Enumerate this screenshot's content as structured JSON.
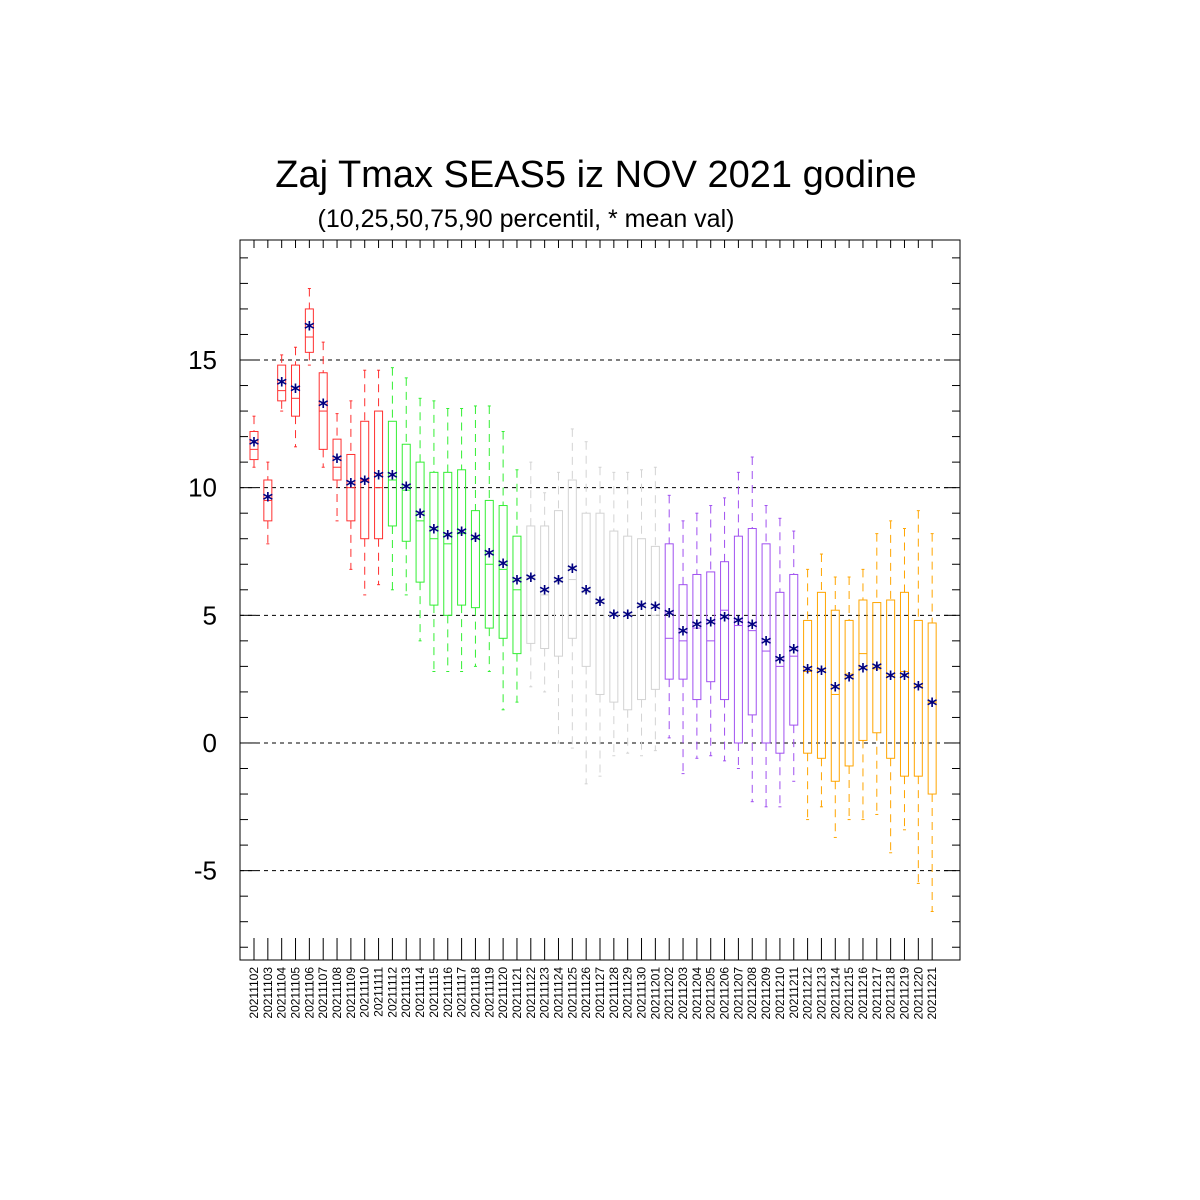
{
  "chart_data": {
    "type": "boxplot",
    "title": "Zaj Tmax SEAS5 iz NOV 2021 godine",
    "subtitle": "(10,25,50,75,90 percentil, * mean val)",
    "xlabel": "",
    "ylabel": "",
    "ylim": [
      -8.5,
      19.7
    ],
    "yticks": [
      -5,
      0,
      5,
      10,
      15
    ],
    "grid": "dashed horizontal at major ticks",
    "mean_marker": "*",
    "mean_color": "#000080",
    "categories": [
      "20211102",
      "20211103",
      "20211104",
      "20211105",
      "20211106",
      "20211107",
      "20211108",
      "20211109",
      "20211110",
      "20211111",
      "20211112",
      "20211113",
      "20211114",
      "20211115",
      "20211116",
      "20211117",
      "20211118",
      "20211119",
      "20211120",
      "20211121",
      "20211122",
      "20211123",
      "20211124",
      "20211125",
      "20211126",
      "20211127",
      "20211128",
      "20211129",
      "20211130",
      "20211201",
      "20211202",
      "20211203",
      "20211204",
      "20211205",
      "20211206",
      "20211207",
      "20211208",
      "20211209",
      "20211210",
      "20211211",
      "20211212",
      "20211213",
      "20211214",
      "20211215",
      "20211216",
      "20211217",
      "20211218",
      "20211219",
      "20211220",
      "20211221"
    ],
    "groups": [
      {
        "color": "#ff3030",
        "count": 10
      },
      {
        "color": "#33ee33",
        "count": 10
      },
      {
        "color": "#d3d3d3",
        "count": 10
      },
      {
        "color": "#a050f0",
        "count": 10
      },
      {
        "color": "#ffa500",
        "count": 10
      }
    ],
    "p10": [
      10.8,
      7.8,
      13.0,
      11.6,
      14.8,
      10.8,
      8.7,
      6.8,
      5.8,
      6.2,
      6.0,
      5.8,
      4.0,
      2.8,
      2.8,
      2.8,
      3.0,
      2.8,
      1.3,
      1.6,
      2.2,
      2.0,
      0.0,
      -0.2,
      -1.6,
      -1.3,
      -0.5,
      -0.4,
      -0.5,
      -0.3,
      0.2,
      -1.2,
      -0.6,
      -0.5,
      -0.7,
      -1.0,
      -2.3,
      -2.5,
      -2.5,
      -1.5,
      -3.0,
      -2.5,
      -3.7,
      -3.0,
      -3.0,
      -2.8,
      -4.3,
      -3.4,
      -5.5,
      -6.6
    ],
    "p25": [
      11.1,
      8.7,
      13.4,
      12.8,
      15.3,
      11.5,
      10.3,
      8.7,
      8.0,
      8.0,
      8.5,
      7.9,
      6.3,
      5.4,
      5.0,
      5.4,
      5.3,
      4.5,
      4.1,
      3.5,
      3.9,
      3.7,
      3.4,
      4.1,
      3.0,
      1.9,
      1.6,
      1.3,
      1.7,
      2.1,
      2.5,
      2.5,
      1.7,
      2.4,
      1.7,
      0.0,
      1.1,
      0.0,
      -0.4,
      0.7,
      -0.4,
      -0.6,
      -1.5,
      -0.9,
      0.1,
      0.4,
      -0.6,
      -1.3,
      -1.3,
      -2.0
    ],
    "p50": [
      11.5,
      9.5,
      13.8,
      13.5,
      15.9,
      13.0,
      10.8,
      10.0,
      10.3,
      10.0,
      10.3,
      9.9,
      8.7,
      8.0,
      7.8,
      8.2,
      8.0,
      7.0,
      6.8,
      6.0,
      6.5,
      5.8,
      6.3,
      6.4,
      5.9,
      5.5,
      5.0,
      5.0,
      5.4,
      5.0,
      4.1,
      4.0,
      4.5,
      4.0,
      5.2,
      4.6,
      4.4,
      3.6,
      3.0,
      3.4,
      2.8,
      2.9,
      1.9,
      2.7,
      3.5,
      2.9,
      2.6,
      2.8,
      2.2,
      1.6
    ],
    "p75": [
      12.2,
      10.3,
      14.8,
      14.8,
      17.0,
      14.5,
      11.9,
      11.3,
      12.6,
      13.0,
      12.6,
      11.7,
      11.0,
      10.6,
      10.6,
      10.7,
      9.1,
      9.5,
      9.3,
      8.1,
      8.5,
      8.5,
      9.1,
      10.3,
      9.0,
      9.0,
      8.3,
      8.1,
      8.0,
      7.7,
      7.8,
      6.2,
      6.6,
      6.7,
      7.1,
      8.1,
      8.4,
      7.8,
      5.9,
      6.6,
      4.8,
      5.9,
      5.2,
      4.8,
      5.6,
      5.5,
      5.6,
      5.9,
      4.8,
      4.7
    ],
    "p90": [
      12.8,
      11.0,
      15.2,
      15.5,
      17.8,
      15.7,
      12.9,
      13.4,
      14.6,
      14.6,
      14.7,
      14.3,
      13.5,
      13.4,
      13.1,
      13.1,
      13.2,
      13.2,
      12.2,
      10.7,
      11.0,
      9.8,
      10.6,
      12.3,
      11.8,
      10.8,
      10.6,
      10.6,
      10.7,
      10.8,
      9.7,
      8.7,
      9.0,
      9.3,
      9.6,
      10.6,
      11.2,
      9.3,
      8.8,
      8.3,
      6.8,
      7.4,
      6.5,
      6.5,
      6.8,
      8.2,
      8.7,
      8.4,
      9.1,
      8.2
    ],
    "mean": [
      11.75,
      9.6,
      14.1,
      13.85,
      16.3,
      13.25,
      11.1,
      10.15,
      10.25,
      10.45,
      10.45,
      10.0,
      8.95,
      8.35,
      8.1,
      8.25,
      8.0,
      7.4,
      7.0,
      6.35,
      6.45,
      5.95,
      6.35,
      6.8,
      5.95,
      5.5,
      5.0,
      5.0,
      5.35,
      5.3,
      5.05,
      4.35,
      4.6,
      4.7,
      4.9,
      4.75,
      4.6,
      3.95,
      3.25,
      3.65,
      2.85,
      2.8,
      2.15,
      2.55,
      2.9,
      2.95,
      2.6,
      2.6,
      2.2,
      1.55
    ]
  }
}
